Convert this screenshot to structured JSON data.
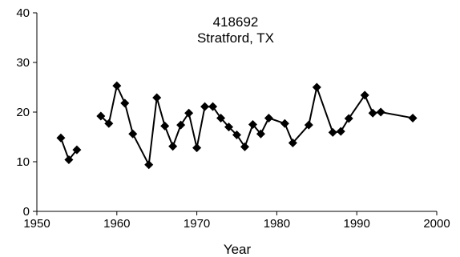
{
  "chart_data": {
    "type": "line",
    "title_lines": [
      "418692",
      "Stratford, TX"
    ],
    "xlabel": "Year",
    "ylabel": "",
    "xlim": [
      1950,
      2000
    ],
    "ylim": [
      0,
      40
    ],
    "xticks": [
      1950,
      1960,
      1970,
      1980,
      1990,
      2000
    ],
    "yticks": [
      0,
      10,
      20,
      30,
      40
    ],
    "grid": false,
    "legend": "none",
    "series": [
      {
        "color": "#000000",
        "marker": "diamond",
        "segments": [
          [
            [
              1953,
              14.8
            ],
            [
              1954,
              10.4
            ],
            [
              1955,
              12.4
            ]
          ],
          [
            [
              1958,
              19.2
            ],
            [
              1959,
              17.7
            ],
            [
              1960,
              25.3
            ],
            [
              1961,
              21.8
            ],
            [
              1962,
              15.6
            ],
            [
              1964,
              9.4
            ],
            [
              1965,
              22.9
            ],
            [
              1966,
              17.2
            ],
            [
              1967,
              13.1
            ],
            [
              1968,
              17.4
            ],
            [
              1969,
              19.8
            ],
            [
              1970,
              12.8
            ],
            [
              1971,
              21.1
            ],
            [
              1972,
              21.1
            ],
            [
              1973,
              18.8
            ],
            [
              1974,
              17.0
            ],
            [
              1975,
              15.4
            ],
            [
              1976,
              13.0
            ],
            [
              1977,
              17.5
            ],
            [
              1978,
              15.6
            ],
            [
              1979,
              18.8
            ],
            [
              1981,
              17.7
            ],
            [
              1982,
              13.8
            ],
            [
              1984,
              17.4
            ],
            [
              1985,
              25.0
            ],
            [
              1987,
              15.9
            ],
            [
              1988,
              16.1
            ],
            [
              1989,
              18.7
            ],
            [
              1991,
              23.4
            ],
            [
              1992,
              19.8
            ],
            [
              1993,
              20.0
            ],
            [
              1997,
              18.8
            ]
          ]
        ]
      }
    ]
  }
}
